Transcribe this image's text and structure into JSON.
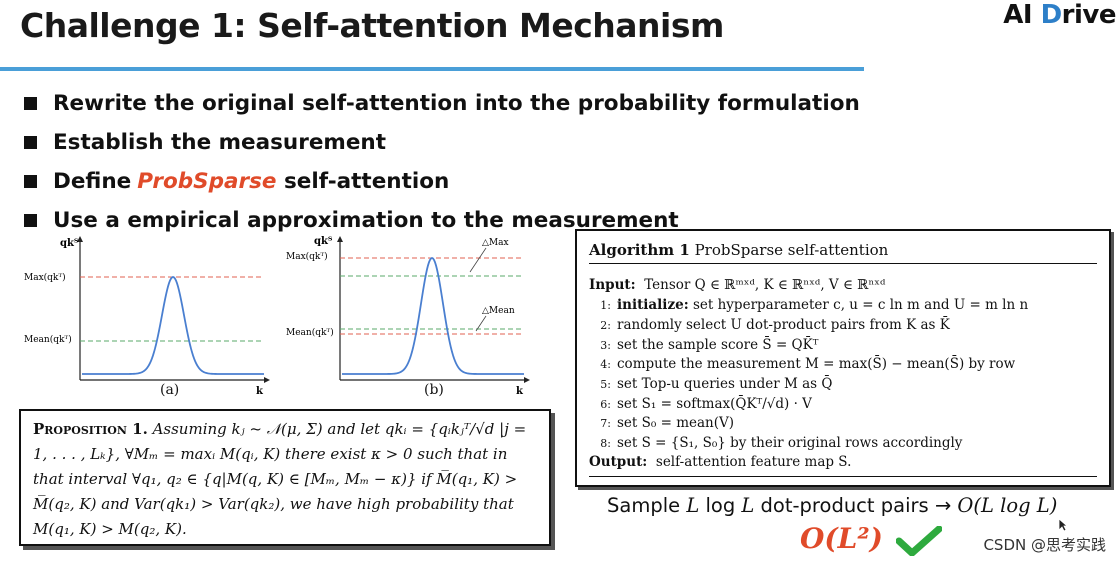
{
  "slide": {
    "title": "Challenge 1: Self-attention Mechanism",
    "logo": {
      "prefix": "AI ",
      "brand_mark": "D",
      "suffix": "rive"
    },
    "bullets": [
      {
        "text": "Rewrite the original self-attention into the probability formulation"
      },
      {
        "text": "Establish the measurement"
      },
      {
        "pre": "Define ",
        "highlight": "ProbSparse",
        "post": " self-attention"
      },
      {
        "text": "Use a empirical approximation to the measurement"
      }
    ]
  },
  "figures": {
    "a": {
      "ylabel": "qkᵀ",
      "xlabel": "k",
      "max_label": "Max(qkᵀ)",
      "mean_label": "Mean(qkᵀ)",
      "caption": "(a)"
    },
    "b": {
      "ylabel": "qkᵀ",
      "xlabel": "k",
      "max_label": "Max(qkᵀ)",
      "mean_label": "Mean(qkᵀ)",
      "delta_max": "△Max",
      "delta_mean": "△Mean",
      "caption": "(b)"
    }
  },
  "proposition": {
    "heading": "Proposition 1.",
    "line1": "Assuming kⱼ ~ 𝒩(μ, Σ) and let qkᵢ = {qᵢkⱼᵀ/√d |j =",
    "line2": "1, . . . , Lₖ}, ∀Mₘ = maxᵢ M(qᵢ, K) there exist κ > 0 such that in",
    "line3": "that interval ∀q₁, q₂ ∈ {q|M(q, K) ∈ [Mₘ, Mₘ − κ)} if M̅(q₁, K) >",
    "line4": "M̅(q₂, K) and Var(qk₁) > Var(qk₂), we have high probability that",
    "line5": "M(q₁, K) > M(q₂, K)."
  },
  "algorithm": {
    "label": "Algorithm 1",
    "name": "ProbSparse self-attention",
    "input_label": "Input:",
    "input_text": "Tensor Q ∈ ℝᵐˣᵈ, K ∈ ℝⁿˣᵈ, V ∈ ℝⁿˣᵈ",
    "steps": [
      {
        "num": "1:",
        "bold": "initialize:",
        "text": " set hyperparameter c, u = c ln m and U = m ln n"
      },
      {
        "num": "2:",
        "bold": "",
        "text": "randomly select U dot-product pairs from K as K̄"
      },
      {
        "num": "3:",
        "bold": "",
        "text": "set the sample score S̄ = QK̄ᵀ"
      },
      {
        "num": "4:",
        "bold": "",
        "text": "compute the measurement M = max(S̄) − mean(S̄) by row"
      },
      {
        "num": "5:",
        "bold": "",
        "text": "set Top-u queries under M as Q̄"
      },
      {
        "num": "6:",
        "bold": "",
        "text": "set S₁ = softmax(Q̄Kᵀ/√d) · V"
      },
      {
        "num": "7:",
        "bold": "",
        "text": "set S₀ = mean(V)"
      },
      {
        "num": "8:",
        "bold": "",
        "text": "set S = {S₁, S₀} by their original rows accordingly"
      }
    ],
    "output_label": "Output:",
    "output_text": "self-attention feature map S."
  },
  "complexity": {
    "sample_pre": "Sample ",
    "sample_math": "L",
    "sample_mid": " log ",
    "sample_math2": "L",
    "sample_post": " dot-product pairs → ",
    "result": "O(L log L)",
    "baseline": "O(L²)"
  },
  "watermark": "CSDN @思考实践",
  "colors": {
    "accent_blue": "#4a9fd8",
    "highlight_red": "#e04b2a",
    "check_green": "#2eaa3e",
    "curve_blue": "#4a7fd0"
  }
}
